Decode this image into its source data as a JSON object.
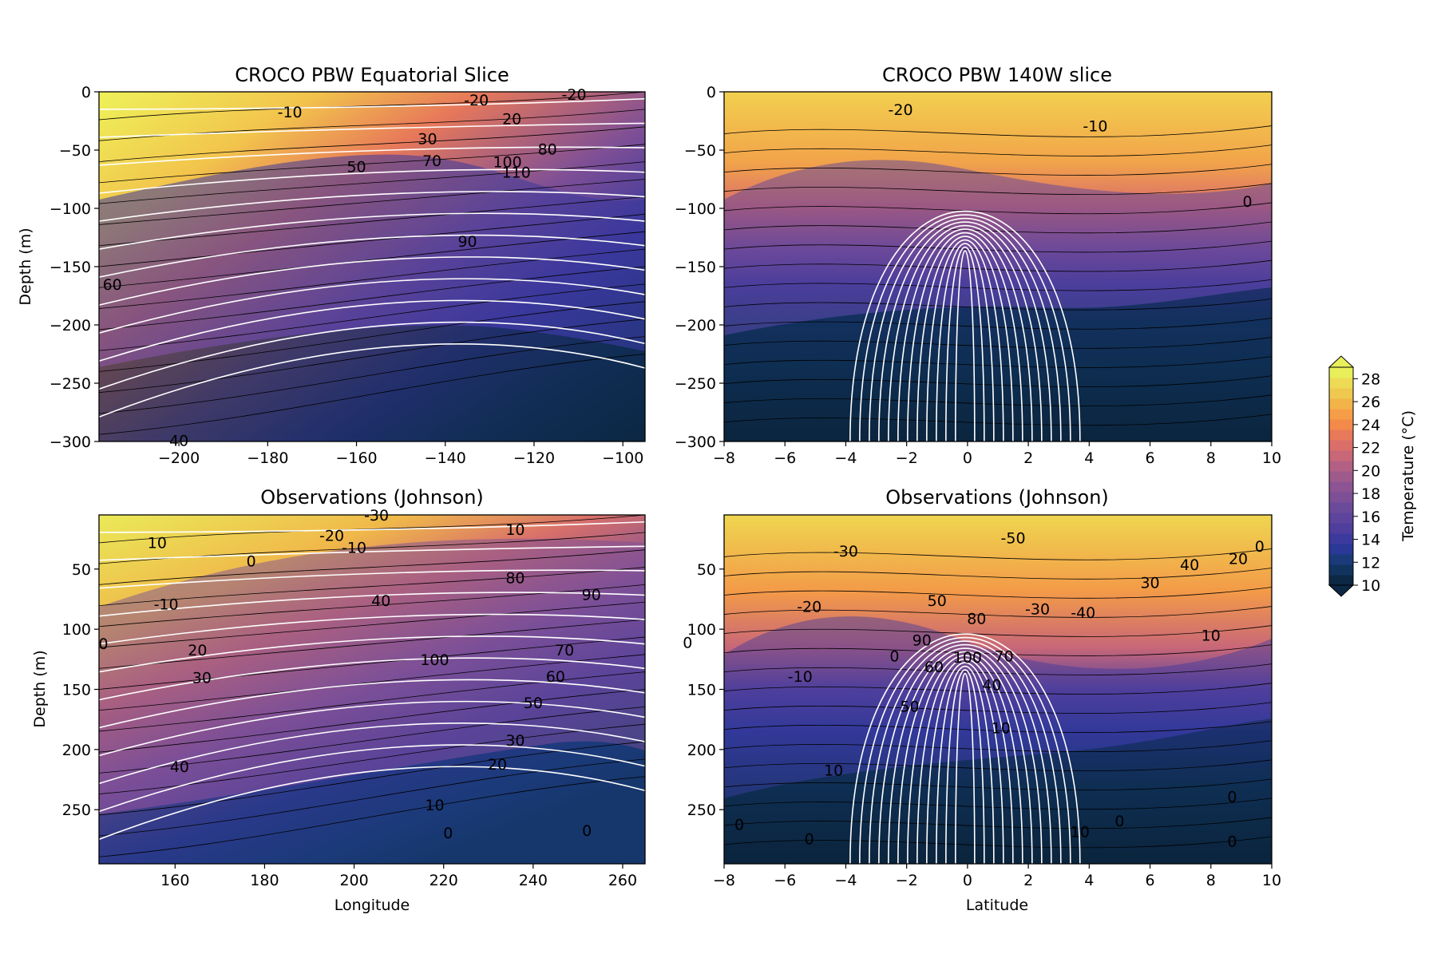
{
  "chart_data": [
    {
      "type": "heatmap",
      "title": "CROCO PBW Equatorial Slice",
      "ylabel": "Depth (m)",
      "xlabel": "",
      "xlim": [
        -218,
        -95
      ],
      "ylim": [
        -300,
        0
      ],
      "xticks": [
        -200,
        -180,
        -160,
        -140,
        -120,
        -100
      ],
      "yticks": [
        0,
        -50,
        -100,
        -150,
        -200,
        -250,
        -300
      ],
      "contour_labels": [
        {
          "text": "-20",
          "x": -133,
          "y": -8
        },
        {
          "text": "-20",
          "x": -111,
          "y": -3
        },
        {
          "text": "-10",
          "x": -175,
          "y": -18
        },
        {
          "text": "20",
          "x": -125,
          "y": -24
        },
        {
          "text": "30",
          "x": -144,
          "y": -41
        },
        {
          "text": "50",
          "x": -160,
          "y": -65
        },
        {
          "text": "70",
          "x": -143,
          "y": -60
        },
        {
          "text": "100",
          "x": -126,
          "y": -61
        },
        {
          "text": "110",
          "x": -124,
          "y": -70
        },
        {
          "text": "80",
          "x": -117,
          "y": -50
        },
        {
          "text": "90",
          "x": -135,
          "y": -129
        },
        {
          "text": "60",
          "x": -215,
          "y": -166
        },
        {
          "text": "40",
          "x": -200,
          "y": -300
        }
      ]
    },
    {
      "type": "heatmap",
      "title": "CROCO PBW 140W slice",
      "ylabel": "",
      "xlabel": "",
      "xlim": [
        -8,
        10
      ],
      "ylim": [
        -300,
        0
      ],
      "xticks": [
        -8,
        -6,
        -4,
        -2,
        0,
        2,
        4,
        6,
        8,
        10
      ],
      "yticks": [
        0,
        -50,
        -100,
        -150,
        -200,
        -250,
        -300
      ],
      "contour_labels": [
        {
          "text": "-20",
          "x": -2.2,
          "y": -16
        },
        {
          "text": "-10",
          "x": 4.2,
          "y": -30
        },
        {
          "text": "0",
          "x": 9.2,
          "y": -95
        }
      ]
    },
    {
      "type": "heatmap",
      "title": "Observations (Johnson)",
      "ylabel": "Depth (m)",
      "xlabel": "Longitude",
      "xlim": [
        143,
        265
      ],
      "ylim": [
        295,
        5
      ],
      "xticks": [
        160,
        180,
        200,
        220,
        240,
        260
      ],
      "yticks": [
        50,
        100,
        150,
        200,
        250
      ],
      "contour_labels": [
        {
          "text": "10",
          "x": 156,
          "y": 29
        },
        {
          "text": "0",
          "x": 177,
          "y": 44
        },
        {
          "text": "-20",
          "x": 195,
          "y": 23
        },
        {
          "text": "-10",
          "x": 200,
          "y": 33
        },
        {
          "text": "-30",
          "x": 205,
          "y": 6
        },
        {
          "text": "10",
          "x": 236,
          "y": 18
        },
        {
          "text": "80",
          "x": 236,
          "y": 58
        },
        {
          "text": "90",
          "x": 253,
          "y": 72
        },
        {
          "text": "40",
          "x": 206,
          "y": 77
        },
        {
          "text": "-10",
          "x": 158,
          "y": 80
        },
        {
          "text": "20",
          "x": 165,
          "y": 118
        },
        {
          "text": "30",
          "x": 166,
          "y": 141
        },
        {
          "text": "100",
          "x": 218,
          "y": 126
        },
        {
          "text": "70",
          "x": 247,
          "y": 118
        },
        {
          "text": "60",
          "x": 245,
          "y": 140
        },
        {
          "text": "50",
          "x": 240,
          "y": 162
        },
        {
          "text": "30",
          "x": 236,
          "y": 193
        },
        {
          "text": "20",
          "x": 232,
          "y": 213
        },
        {
          "text": "40",
          "x": 161,
          "y": 215
        },
        {
          "text": "10",
          "x": 218,
          "y": 247
        },
        {
          "text": "0",
          "x": 221,
          "y": 270
        },
        {
          "text": "0",
          "x": 252,
          "y": 268
        },
        {
          "text": "0",
          "x": 144,
          "y": 113
        }
      ]
    },
    {
      "type": "heatmap",
      "title": "Observations (Johnson)",
      "ylabel": "",
      "xlabel": "Latitude",
      "xlim": [
        -8,
        10
      ],
      "ylim": [
        295,
        5
      ],
      "xticks": [
        -8,
        -6,
        -4,
        -2,
        0,
        2,
        4,
        6,
        8,
        10
      ],
      "yticks": [
        50,
        100,
        150,
        200,
        250
      ],
      "contour_labels": [
        {
          "text": "-30",
          "x": -4,
          "y": 36
        },
        {
          "text": "-50",
          "x": 1.5,
          "y": 25
        },
        {
          "text": "-20",
          "x": -5.2,
          "y": 82
        },
        {
          "text": "-30",
          "x": 2.3,
          "y": 84
        },
        {
          "text": "-40",
          "x": 3.8,
          "y": 87
        },
        {
          "text": "50",
          "x": -1,
          "y": 77
        },
        {
          "text": "90",
          "x": -1.5,
          "y": 110
        },
        {
          "text": "80",
          "x": 0.3,
          "y": 92
        },
        {
          "text": "100",
          "x": 0,
          "y": 124
        },
        {
          "text": "0",
          "x": -2.4,
          "y": 123
        },
        {
          "text": "70",
          "x": 1.2,
          "y": 123
        },
        {
          "text": "60",
          "x": -1.1,
          "y": 132
        },
        {
          "text": "40",
          "x": 0.8,
          "y": 147
        },
        {
          "text": "-10",
          "x": -5.5,
          "y": 140
        },
        {
          "text": "50",
          "x": -1.9,
          "y": 165
        },
        {
          "text": "10",
          "x": 1.1,
          "y": 183
        },
        {
          "text": "10",
          "x": -4.4,
          "y": 218
        },
        {
          "text": "30",
          "x": 6,
          "y": 62
        },
        {
          "text": "40",
          "x": 7.3,
          "y": 47
        },
        {
          "text": "20",
          "x": 8.9,
          "y": 42
        },
        {
          "text": "0",
          "x": 9.6,
          "y": 32
        },
        {
          "text": "10",
          "x": 8,
          "y": 106
        },
        {
          "text": "0",
          "x": -7.5,
          "y": 263
        },
        {
          "text": "0",
          "x": -5.2,
          "y": 275
        },
        {
          "text": "10",
          "x": 3.7,
          "y": 269
        },
        {
          "text": "0",
          "x": 5,
          "y": 260
        },
        {
          "text": "0",
          "x": 8.7,
          "y": 240
        },
        {
          "text": "0",
          "x": 8.7,
          "y": 277
        },
        {
          "text": "0",
          "x": -9.2,
          "y": 112
        }
      ]
    }
  ],
  "colorbar": {
    "label": "Temperature (°C)",
    "ticks": [
      10,
      12,
      14,
      16,
      18,
      20,
      22,
      24,
      26,
      28
    ],
    "range": [
      10,
      29
    ],
    "colors": [
      "#0c2844",
      "#11345f",
      "#1b3a79",
      "#2a3896",
      "#3d3a9e",
      "#4f3e9c",
      "#5d449c",
      "#6c4a9a",
      "#7c4f97",
      "#8c5492",
      "#9f5a8c",
      "#b36084",
      "#c86778",
      "#da6f69",
      "#e8795a",
      "#f38a4a",
      "#f59e47",
      "#f2b449",
      "#efc94f",
      "#eddb55",
      "#e8ef5a"
    ]
  }
}
